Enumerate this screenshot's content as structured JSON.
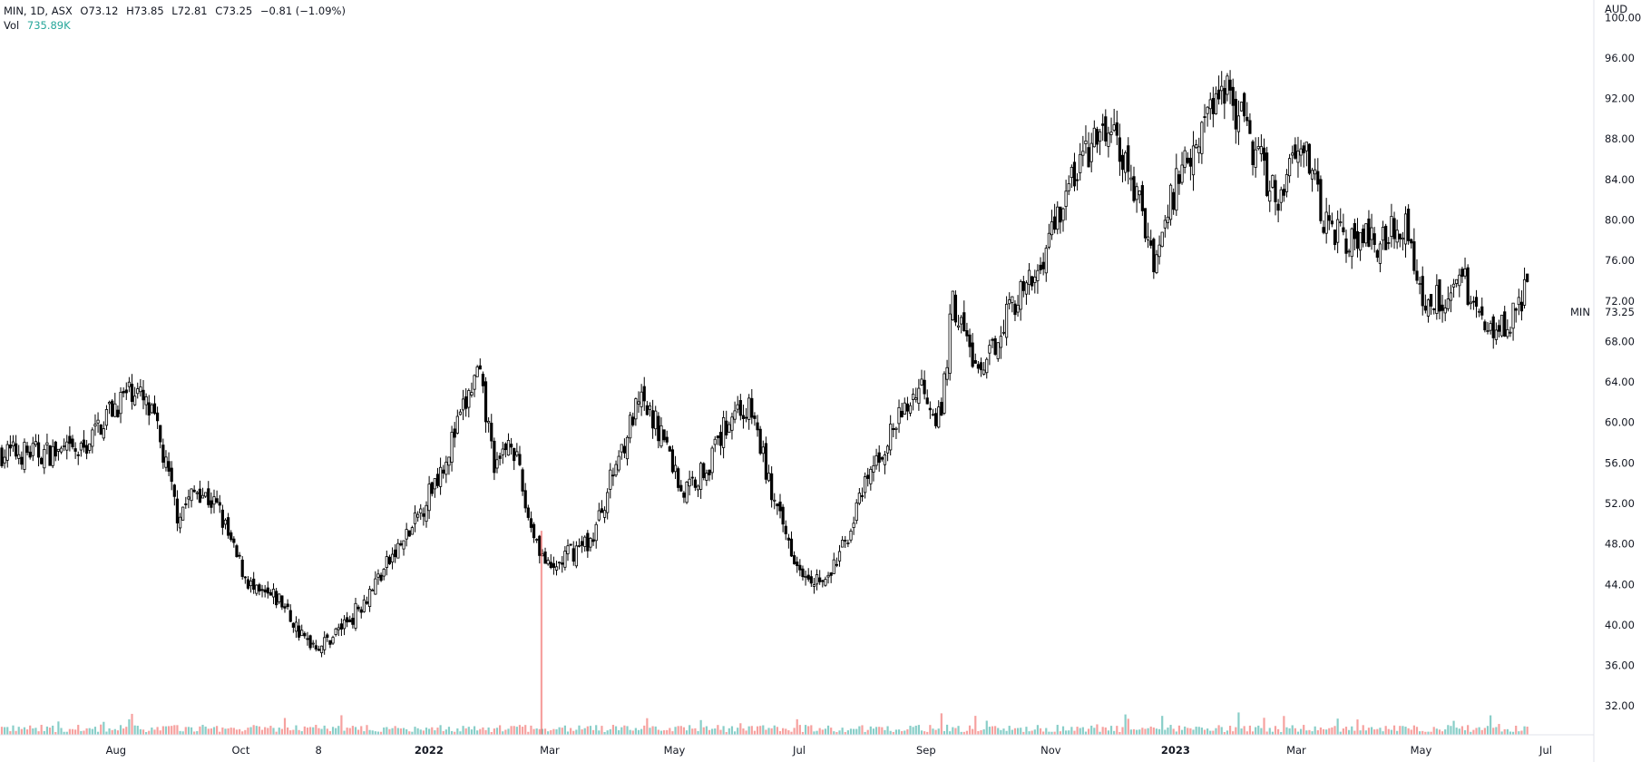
{
  "legend": {
    "symbol": "MIN",
    "interval": "1D",
    "exchange": "ASX",
    "open": "O73.12",
    "high": "H73.85",
    "low": "L72.81",
    "close": "C73.25",
    "change": "−0.81 (−1.09%)",
    "volume_label": "Vol",
    "volume_value": "735.89K"
  },
  "price_scale": {
    "currency": "AUD",
    "last_symbol": "MIN",
    "last_price": "73.25"
  },
  "colors": {
    "up_volume": "#26a69a",
    "down_volume": "#ef5350",
    "candle_up": "#ffffff",
    "candle_down": "#000000",
    "candle_border": "#000000"
  },
  "chart_data": {
    "type": "candlestick",
    "title": "",
    "ylabel": "AUD",
    "ylim": [
      30,
      102
    ],
    "y_ticks": [
      32,
      36,
      40,
      44,
      48,
      52,
      56,
      60,
      64,
      68,
      72,
      76,
      80,
      84,
      88,
      92,
      96,
      100
    ],
    "y_tick_labels": [
      "32.00",
      "36.00",
      "40.00",
      "44.00",
      "48.00",
      "52.00",
      "56.00",
      "60.00",
      "64.00",
      "68.00",
      "72.00",
      "76.00",
      "80.00",
      "84.00",
      "88.00",
      "92.00",
      "96.00",
      "100.00"
    ],
    "x_tick_labels": [
      "Aug",
      "Oct",
      "8",
      "2022",
      "Mar",
      "May",
      "Jul",
      "Sep",
      "Nov",
      "2023",
      "Mar",
      "May",
      "Jul"
    ],
    "grid": false,
    "approx_close_path": [
      [
        "2021-07-15",
        57.0
      ],
      [
        "2021-07-28",
        61.0
      ],
      [
        "2021-08-10",
        63.5
      ],
      [
        "2021-08-20",
        60.0
      ],
      [
        "2021-08-31",
        51.0
      ],
      [
        "2021-09-10",
        53.5
      ],
      [
        "2021-09-20",
        51.5
      ],
      [
        "2021-09-28",
        47.0
      ],
      [
        "2021-10-08",
        43.0
      ],
      [
        "2021-10-20",
        42.5
      ],
      [
        "2021-11-01",
        38.5
      ],
      [
        "2021-11-10",
        38.0
      ],
      [
        "2021-11-25",
        41.0
      ],
      [
        "2021-12-10",
        45.5
      ],
      [
        "2021-12-24",
        49.5
      ],
      [
        "2022-01-10",
        57.0
      ],
      [
        "2022-01-25",
        65.0
      ],
      [
        "2022-02-03",
        55.0
      ],
      [
        "2022-02-10",
        59.0
      ],
      [
        "2022-02-18",
        51.0
      ],
      [
        "2022-03-01",
        45.0
      ],
      [
        "2022-03-10",
        47.0
      ],
      [
        "2022-03-22",
        48.5
      ],
      [
        "2022-04-04",
        57.0
      ],
      [
        "2022-04-14",
        62.0
      ],
      [
        "2022-04-25",
        59.0
      ],
      [
        "2022-05-05",
        53.0
      ],
      [
        "2022-05-18",
        56.0
      ],
      [
        "2022-05-30",
        61.5
      ],
      [
        "2022-06-08",
        61.0
      ],
      [
        "2022-06-20",
        51.0
      ],
      [
        "2022-07-01",
        46.0
      ],
      [
        "2022-07-14",
        44.0
      ],
      [
        "2022-07-22",
        47.5
      ],
      [
        "2022-08-05",
        55.0
      ],
      [
        "2022-08-18",
        60.0
      ],
      [
        "2022-08-30",
        64.0
      ],
      [
        "2022-09-08",
        60.0
      ],
      [
        "2022-09-14",
        72.0
      ],
      [
        "2022-09-28",
        64.0
      ],
      [
        "2022-10-10",
        71.0
      ],
      [
        "2022-10-24",
        74.0
      ],
      [
        "2022-11-03",
        80.0
      ],
      [
        "2022-11-16",
        86.0
      ],
      [
        "2022-11-30",
        89.0
      ],
      [
        "2022-12-12",
        83.0
      ],
      [
        "2022-12-22",
        76.0
      ],
      [
        "2023-01-03",
        85.0
      ],
      [
        "2023-01-16",
        90.0
      ],
      [
        "2023-01-24",
        94.0
      ],
      [
        "2023-02-06",
        88.0
      ],
      [
        "2023-02-20",
        82.0
      ],
      [
        "2023-03-03",
        89.0
      ],
      [
        "2023-03-14",
        80.0
      ],
      [
        "2023-03-28",
        78.0
      ],
      [
        "2023-04-10",
        78.0
      ],
      [
        "2023-04-24",
        80.0
      ],
      [
        "2023-05-01",
        72.0
      ],
      [
        "2023-05-12",
        72.5
      ],
      [
        "2023-05-22",
        74.0
      ],
      [
        "2023-06-01",
        69.5
      ],
      [
        "2023-06-12",
        70.0
      ],
      [
        "2023-06-23",
        73.25
      ]
    ],
    "volume_spikes": [
      [
        "2022-02-25",
        "red",
        49.3
      ]
    ]
  }
}
